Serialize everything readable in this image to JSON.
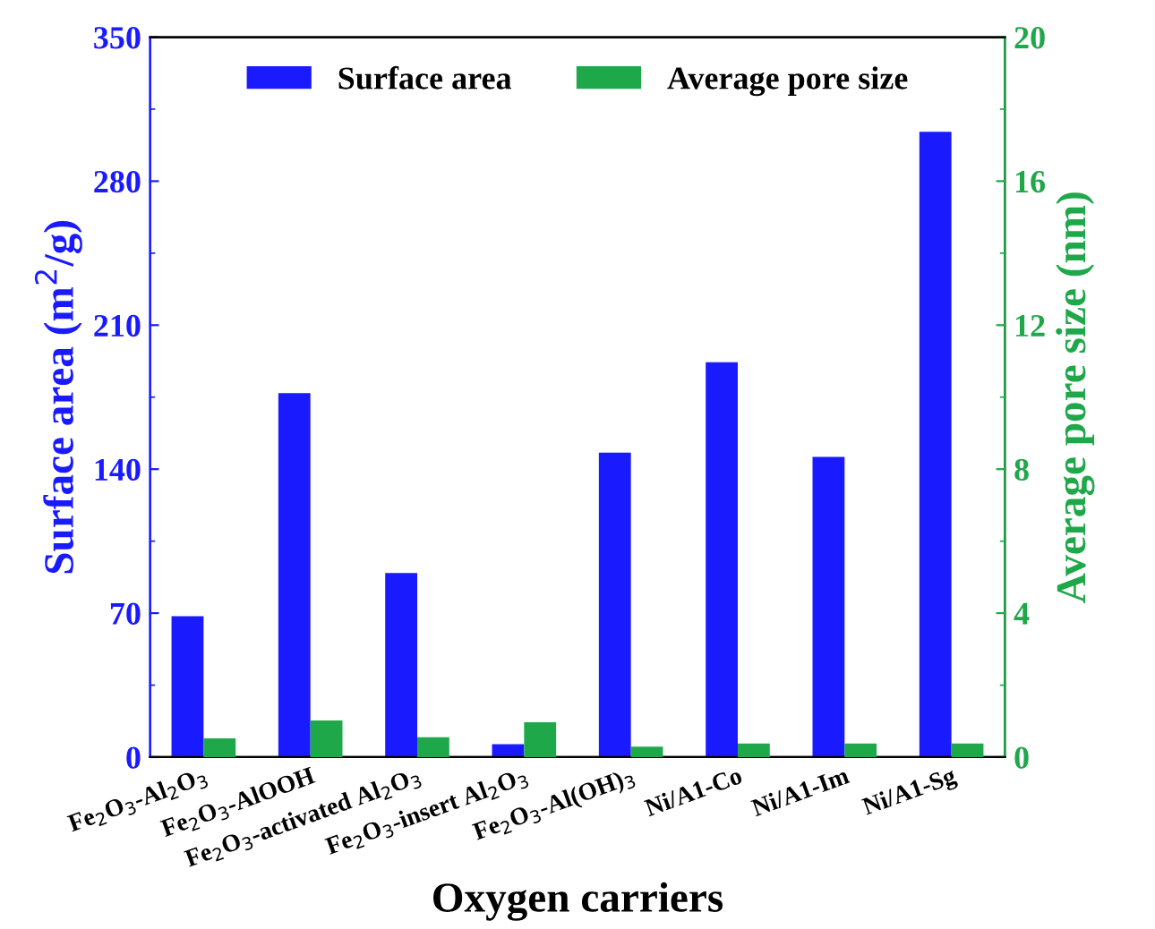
{
  "chart_data": {
    "type": "bar",
    "xlabel": "Oxygen carriers",
    "ylabel": "Surface area (m$^{2}$/g)",
    "y2label": "Average pore size (nm)",
    "categories": [
      "Fe$_{2}$O$_{3}$-Al$_{2}$O$_{3}$",
      "Fe$_{2}$O$_{3}$-AlOOH",
      "Fe$_{2}$O$_{3}$-activated Al$_{2}$O$_{3}$",
      "Fe$_{2}$O$_{3}$-insert Al$_{2}$O$_{3}$",
      "Fe$_{2}$O$_{3}$-Al(OH)$_{3}$",
      "Ni/A1-Co",
      "Ni/A1-Im",
      "Ni/A1-Sg"
    ],
    "series": [
      {
        "name": "Surface area",
        "color": "#1a1aff",
        "values": [
          68.5,
          177,
          89.5,
          6.3,
          148,
          192,
          146,
          304
        ]
      },
      {
        "name": "Average pore size",
        "color": "#1fa84a",
        "axis": "y2",
        "values": [
          0.52,
          1.02,
          0.55,
          0.97,
          0.29,
          0.38,
          0.38,
          0.38
        ]
      }
    ],
    "ylim": [
      0,
      350
    ],
    "yticks": [
      0,
      70,
      140,
      210,
      280,
      350
    ],
    "y2lim": [
      0,
      20
    ],
    "y2ticks": [
      0,
      4,
      8,
      12,
      16,
      20
    ],
    "grid": false,
    "legend": "top"
  }
}
